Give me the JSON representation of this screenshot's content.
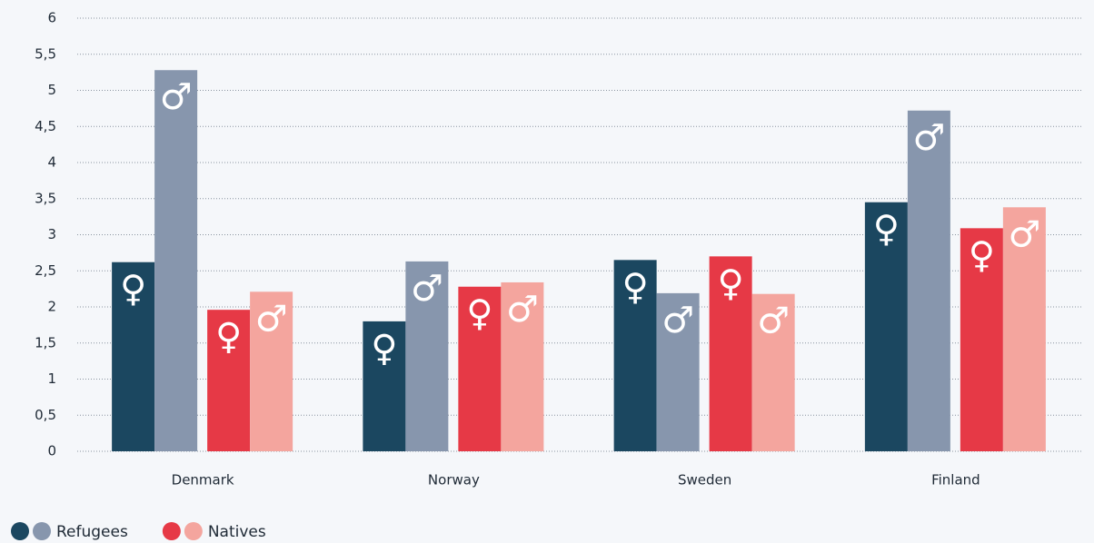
{
  "chart_data": {
    "type": "bar",
    "categories": [
      "Denmark",
      "Norway",
      "Sweden",
      "Finland"
    ],
    "series": [
      {
        "symbol": "♀",
        "color": "#1b4760",
        "values": [
          2.62,
          1.8,
          2.65,
          3.45
        ]
      },
      {
        "symbol": "♂",
        "color": "#8796ad",
        "values": [
          5.28,
          2.63,
          2.19,
          4.72
        ]
      },
      {
        "symbol": "♀",
        "color": "#e63946",
        "values": [
          1.96,
          2.28,
          2.7,
          3.09
        ]
      },
      {
        "symbol": "♂",
        "color": "#f4a59e",
        "values": [
          2.21,
          2.34,
          2.18,
          3.38
        ]
      }
    ],
    "legend": [
      {
        "name": "Refugees",
        "series": [
          0,
          1
        ]
      },
      {
        "name": "Natives",
        "series": [
          2,
          3
        ]
      }
    ],
    "ylim": [
      0,
      6
    ],
    "yticks": [
      0,
      {
        "value": 0.5,
        "label": "0,5"
      },
      1,
      {
        "value": 1.5,
        "label": "1,5"
      },
      2,
      {
        "value": 2.5,
        "label": "2,5"
      },
      3,
      {
        "value": 3.5,
        "label": "3,5"
      },
      4,
      {
        "value": 4.5,
        "label": "4,5"
      },
      5,
      {
        "value": 5.5,
        "label": "5,5"
      },
      6
    ],
    "grid": true
  }
}
